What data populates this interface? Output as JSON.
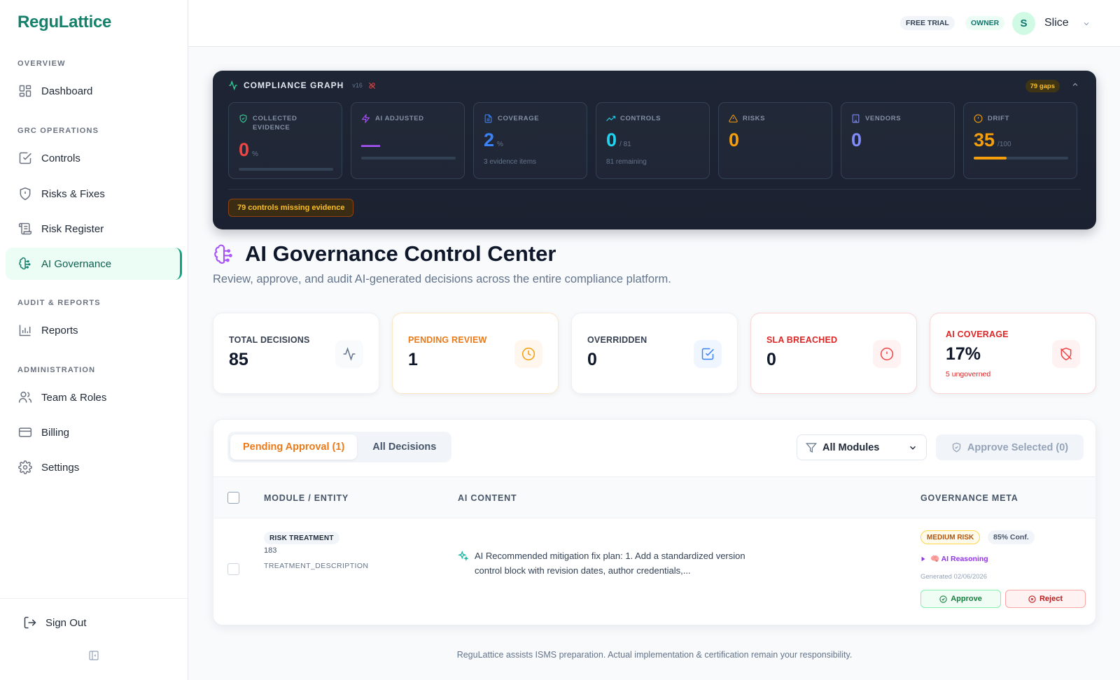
{
  "app": {
    "name": "ReguLattice"
  },
  "sidebar": {
    "sections": [
      {
        "title": "OVERVIEW"
      },
      {
        "title": "GRC OPERATIONS"
      },
      {
        "title": "AUDIT & REPORTS"
      },
      {
        "title": "ADMINISTRATION"
      }
    ],
    "items": [
      {
        "label": "Dashboard",
        "icon": "dashboard-icon"
      },
      {
        "label": "Controls",
        "icon": "checkbox-icon"
      },
      {
        "label": "Risks & Fixes",
        "icon": "shield-alert-icon"
      },
      {
        "label": "Risk Register",
        "icon": "scroll-icon"
      },
      {
        "label": "AI Governance",
        "icon": "brain-icon",
        "active": true
      },
      {
        "label": "Reports",
        "icon": "bar-chart-icon"
      },
      {
        "label": "Team & Roles",
        "icon": "users-icon"
      },
      {
        "label": "Billing",
        "icon": "credit-card-icon"
      },
      {
        "label": "Settings",
        "icon": "gear-icon"
      }
    ],
    "sign_out": "Sign Out"
  },
  "topbar": {
    "plan_badge": "FREE TRIAL",
    "role_badge": "OWNER",
    "avatar_initial": "S",
    "user_name": "Slice"
  },
  "graph": {
    "title": "COMPLIANCE GRAPH",
    "version": "v16",
    "gaps_badge": "79 gaps",
    "metrics": [
      {
        "label": "COLLECTED EVIDENCE",
        "value": "0",
        "unit": "%",
        "color": "#ef4444",
        "icon": "shield-check-icon",
        "progress": 0
      },
      {
        "label": "AI ADJUSTED",
        "value": "—",
        "color": "#a855f7",
        "icon": "bolt-icon",
        "progress": 0
      },
      {
        "label": "COVERAGE",
        "value": "2",
        "unit": "%",
        "sub": "3 evidence items",
        "color": "#3b82f6",
        "icon": "document-icon"
      },
      {
        "label": "CONTROLS",
        "value": "0",
        "unit": "/ 81",
        "sub": "81 remaining",
        "color": "#22d3ee",
        "icon": "trending-up-icon"
      },
      {
        "label": "RISKS",
        "value": "0",
        "color": "#f59e0b",
        "icon": "warning-icon"
      },
      {
        "label": "VENDORS",
        "value": "0",
        "color": "#818cf8",
        "icon": "building-icon"
      },
      {
        "label": "DRIFT",
        "value": "35",
        "unit": "/100",
        "color": "#f59e0b",
        "icon": "alert-circle-icon",
        "progress": 0.35
      }
    ],
    "missing_badge": "79 controls missing evidence"
  },
  "page": {
    "title": "AI Governance Control Center",
    "subtitle": "Review, approve, and audit AI-generated decisions across the entire compliance platform."
  },
  "stats": [
    {
      "label": "TOTAL DECISIONS",
      "value": "85",
      "icon": "activity-icon",
      "label_color": "#374151"
    },
    {
      "label": "PENDING REVIEW",
      "value": "1",
      "icon": "clock-icon",
      "label_color": "#ea7a1a"
    },
    {
      "label": "OVERRIDDEN",
      "value": "0",
      "icon": "checkbox-icon",
      "label_color": "#374151"
    },
    {
      "label": "SLA BREACHED",
      "value": "0",
      "icon": "alert-circle-icon",
      "label_color": "#dc2626"
    },
    {
      "label": "AI COVERAGE",
      "value": "17%",
      "sub": "5 ungoverned",
      "icon": "shield-off-icon",
      "label_color": "#dc2626"
    }
  ],
  "decisions": {
    "tabs": [
      "Pending Approval (1)",
      "All Decisions"
    ],
    "filter_value": "All Modules",
    "approve_selected": "Approve Selected (0)",
    "columns": [
      "MODULE / ENTITY",
      "AI CONTENT",
      "GOVERNANCE META"
    ],
    "rows": [
      {
        "module": "RISK TREATMENT",
        "entity_id": "183",
        "field": "TREATMENT_DESCRIPTION",
        "content": "AI Recommended mitigation fix plan: 1. Add a standardized version control block with revision dates, author credentials,...",
        "risk": "MEDIUM RISK",
        "confidence": "85% Conf.",
        "reasoning": "🧠 AI Reasoning",
        "generated": "Generated 02/06/2026",
        "approve": "Approve",
        "reject": "Reject"
      }
    ]
  },
  "footer": "ReguLattice assists ISMS preparation. Actual implementation & certification remain your responsibility."
}
